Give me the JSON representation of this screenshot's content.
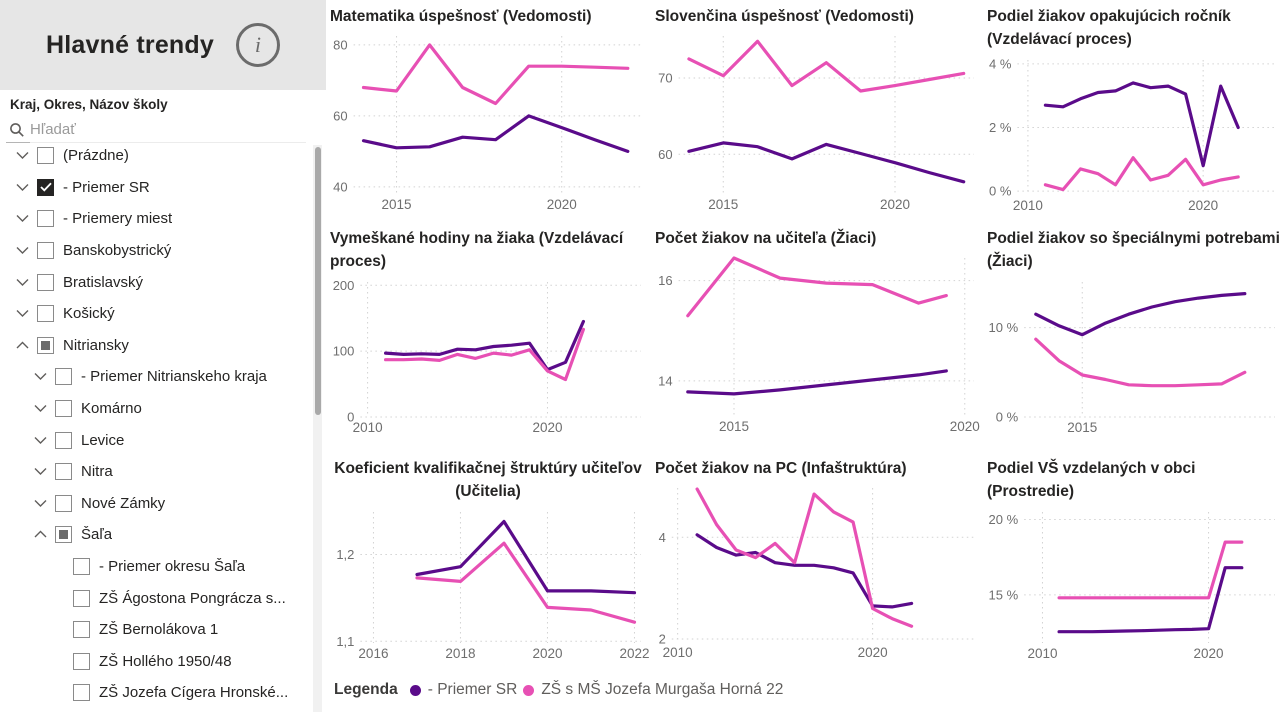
{
  "sidebar": {
    "title": "Hlavné trendy",
    "info_icon": "i",
    "filter_label": "Kraj, Okres, Názov školy",
    "search_placeholder": "Hľadať",
    "tree": [
      {
        "label": "(Prázdne)",
        "level": 0,
        "chevron": "down",
        "state": "unchecked"
      },
      {
        "label": "- Priemer SR",
        "level": 0,
        "chevron": "down",
        "state": "checked"
      },
      {
        "label": "- Priemery miest",
        "level": 0,
        "chevron": "down",
        "state": "unchecked"
      },
      {
        "label": "Banskobystrický",
        "level": 0,
        "chevron": "down",
        "state": "unchecked"
      },
      {
        "label": "Bratislavský",
        "level": 0,
        "chevron": "down",
        "state": "unchecked"
      },
      {
        "label": "Košický",
        "level": 0,
        "chevron": "down",
        "state": "unchecked"
      },
      {
        "label": "Nitriansky",
        "level": 0,
        "chevron": "up",
        "state": "partial"
      },
      {
        "label": "- Priemer Nitrianskeho kraja",
        "level": 1,
        "chevron": "down",
        "state": "unchecked"
      },
      {
        "label": "Komárno",
        "level": 1,
        "chevron": "down",
        "state": "unchecked"
      },
      {
        "label": "Levice",
        "level": 1,
        "chevron": "down",
        "state": "unchecked"
      },
      {
        "label": "Nitra",
        "level": 1,
        "chevron": "down",
        "state": "unchecked"
      },
      {
        "label": "Nové Zámky",
        "level": 1,
        "chevron": "down",
        "state": "unchecked"
      },
      {
        "label": "Šaľa",
        "level": 1,
        "chevron": "up",
        "state": "partial"
      },
      {
        "label": "- Priemer okresu Šaľa",
        "level": 2,
        "chevron": "none",
        "state": "unchecked"
      },
      {
        "label": "ZŠ Ágostona Pongrácza s...",
        "level": 2,
        "chevron": "none",
        "state": "unchecked"
      },
      {
        "label": "ZŠ Bernolákova 1",
        "level": 2,
        "chevron": "none",
        "state": "unchecked"
      },
      {
        "label": "ZŠ Hollého 1950/48",
        "level": 2,
        "chevron": "none",
        "state": "unchecked"
      },
      {
        "label": "ZŠ Jozefa Cígera Hronské...",
        "level": 2,
        "chevron": "none",
        "state": "unchecked"
      }
    ]
  },
  "legend": {
    "label": "Legenda",
    "series": [
      {
        "name": "- Priemer SR",
        "color": "#5A0B8A"
      },
      {
        "name": "ZŠ s MŠ Jozefa Murgaša Horná 22",
        "color": "#E750B4"
      }
    ]
  },
  "colors": {
    "purple": "#5A0B8A",
    "pink": "#E750B4",
    "grid": "#d2d2d2",
    "axis_text": "#6e6e6e",
    "title_text": "#252423",
    "header_bg": "#e6e6e6"
  },
  "chart_data": [
    {
      "type": "line",
      "title": "Matematika úspešnosť (Vedomosti)",
      "xlim": [
        2013.7,
        2022.4
      ],
      "ylim": [
        38,
        82.5
      ],
      "yticks": {
        "values": [
          40,
          60,
          80
        ],
        "labels": [
          "40",
          "60",
          "80"
        ]
      },
      "xticks": {
        "values": [
          2015,
          2020
        ],
        "labels": [
          "2015",
          "2020"
        ]
      },
      "x": [
        2014,
        2015,
        2016,
        2017,
        2018,
        2019,
        2020,
        2021,
        2022
      ],
      "series": [
        {
          "name": "- Priemer SR",
          "values": [
            53,
            51,
            51.3,
            54,
            53.3,
            60,
            56.7,
            53.3,
            50
          ]
        },
        {
          "name": "ZŠ s MŠ Jozefa Murgaša Horná 22",
          "values": [
            68,
            67,
            80,
            68,
            63.5,
            74,
            74,
            73.7,
            73.4
          ]
        }
      ]
    },
    {
      "type": "line",
      "title": "Slovenčina úspešnosť (Vedomosti)",
      "xlim": [
        2013.7,
        2022.3
      ],
      "ylim": [
        54.8,
        75.5
      ],
      "yticks": {
        "values": [
          60,
          70
        ],
        "labels": [
          "60",
          "70"
        ]
      },
      "xticks": {
        "values": [
          2015,
          2020
        ],
        "labels": [
          "2015",
          "2020"
        ]
      },
      "x": [
        2014,
        2015,
        2016,
        2017,
        2018,
        2019,
        2020,
        2021,
        2022
      ],
      "series": [
        {
          "name": "- Priemer SR",
          "values": [
            60.4,
            61.5,
            61,
            59.4,
            61.3,
            60.1,
            58.9,
            57.6,
            56.4
          ]
        },
        {
          "name": "ZŠ s MŠ Jozefa Murgaša Horná 22",
          "values": [
            72.5,
            70.3,
            74.8,
            69,
            72,
            68.3,
            69,
            69.8,
            70.6
          ]
        }
      ]
    },
    {
      "type": "line",
      "title": "Podiel žiakov opakujúcich ročník (Vzdelávací proces)",
      "xlim": [
        2009.4,
        2024.1
      ],
      "ylim": [
        -0.12,
        4.12
      ],
      "yticks": {
        "values": [
          0,
          2,
          4
        ],
        "labels": [
          "0 %",
          "2 %",
          "4 %"
        ]
      },
      "xticks": {
        "values": [
          2010,
          2020
        ],
        "labels": [
          "2010",
          "2020"
        ]
      },
      "x": [
        2011,
        2012,
        2013,
        2014,
        2015,
        2016,
        2017,
        2018,
        2019,
        2020,
        2021,
        2022
      ],
      "series": [
        {
          "name": "- Priemer SR",
          "values": [
            2.7,
            2.65,
            2.9,
            3.1,
            3.15,
            3.4,
            3.25,
            3.3,
            3.05,
            0.8,
            3.3,
            2.0
          ]
        },
        {
          "name": "ZŠ s MŠ Jozefa Murgaša Horná 22",
          "values": [
            0.2,
            0.05,
            0.7,
            0.55,
            0.2,
            1.05,
            0.35,
            0.5,
            1.0,
            0.2,
            0.35,
            0.45
          ]
        }
      ]
    },
    {
      "type": "line",
      "title": "Vymeškané hodiny na žiaka (Vzdelávací proces)",
      "xlim": [
        2009.6,
        2025.2
      ],
      "ylim": [
        0,
        205
      ],
      "yticks": {
        "values": [
          0,
          100,
          200
        ],
        "labels": [
          "0",
          "100",
          "200"
        ]
      },
      "xticks": {
        "values": [
          2010,
          2020
        ],
        "labels": [
          "2010",
          "2020"
        ]
      },
      "x": [
        2011,
        2012,
        2013,
        2014,
        2015,
        2016,
        2017,
        2018,
        2019,
        2020,
        2021,
        2022
      ],
      "series": [
        {
          "name": "- Priemer SR",
          "values": [
            97,
            95,
            96,
            95,
            103,
            102,
            107,
            109,
            112,
            72,
            83,
            145
          ]
        },
        {
          "name": "ZŠ s MŠ Jozefa Murgaša Horná 22",
          "values": [
            87,
            87,
            88,
            86,
            95,
            89,
            97,
            94,
            102,
            70,
            57,
            133
          ]
        }
      ]
    },
    {
      "type": "line",
      "title": "Počet žiakov na učiteľa (Žiaci)",
      "xlim": [
        2013.8,
        2020.2
      ],
      "ylim": [
        13.3,
        16.45
      ],
      "yticks": {
        "values": [
          14,
          16
        ],
        "labels": [
          "14",
          "16"
        ]
      },
      "xticks": {
        "values": [
          2015,
          2020
        ],
        "labels": [
          "2015",
          "2020"
        ]
      },
      "x": [
        2014,
        2015,
        2016,
        2017,
        2018,
        2019,
        2019.6
      ],
      "series": [
        {
          "name": "- Priemer SR",
          "values": [
            13.78,
            13.74,
            13.82,
            13.92,
            14.02,
            14.12,
            14.2
          ]
        },
        {
          "name": "ZŠ s MŠ Jozefa Murgaša Horná 22",
          "values": [
            15.3,
            16.45,
            16.05,
            15.95,
            15.92,
            15.55,
            15.7
          ]
        }
      ]
    },
    {
      "type": "line",
      "title": "Podiel žiakov so špeciálnymi potrebami (Žiaci)",
      "xlim": [
        2012.5,
        2023.3
      ],
      "ylim": [
        0,
        15.1
      ],
      "yticks": {
        "values": [
          0,
          10
        ],
        "labels": [
          "0 %",
          "10 %"
        ]
      },
      "xticks": {
        "values": [
          2015
        ],
        "labels": [
          "2015"
        ]
      },
      "x": [
        2013,
        2014,
        2015,
        2016,
        2017,
        2018,
        2019,
        2020,
        2021,
        2022
      ],
      "series": [
        {
          "name": "- Priemer SR",
          "values": [
            11.5,
            10.2,
            9.2,
            10.5,
            11.5,
            12.3,
            12.9,
            13.3,
            13.6,
            13.8
          ]
        },
        {
          "name": "ZŠ s MŠ Jozefa Murgaša Horná 22",
          "values": [
            8.7,
            6.3,
            4.7,
            4.2,
            3.6,
            3.5,
            3.5,
            3.6,
            3.7,
            5.0
          ]
        }
      ]
    },
    {
      "type": "line",
      "title": "Koeficient kvalifikačnej štruktúry učiteľov (Učitelia)",
      "xlim": [
        2015.7,
        2022.15
      ],
      "ylim": [
        1.098,
        1.249
      ],
      "yticks": {
        "values": [
          1.1,
          1.2
        ],
        "labels": [
          "1,1",
          "1,2"
        ]
      },
      "xticks": {
        "values": [
          2016,
          2018,
          2020,
          2022
        ],
        "labels": [
          "2016",
          "2018",
          "2020",
          "2022"
        ]
      },
      "x": [
        2017,
        2018,
        2019,
        2020,
        2021,
        2022
      ],
      "series": [
        {
          "name": "- Priemer SR",
          "values": [
            1.177,
            1.186,
            1.238,
            1.158,
            1.158,
            1.156
          ]
        },
        {
          "name": "ZŠ s MŠ Jozefa Murgaša Horná 22",
          "values": [
            1.173,
            1.169,
            1.213,
            1.139,
            1.136,
            1.122
          ]
        }
      ]
    },
    {
      "type": "line",
      "title": "Počet žiakov na PC (Infaštruktúra)",
      "xlim": [
        2009.7,
        2025.2
      ],
      "ylim": [
        1.94,
        4.97
      ],
      "yticks": {
        "values": [
          2,
          4
        ],
        "labels": [
          "2",
          "4"
        ]
      },
      "xticks": {
        "values": [
          2010,
          2020
        ],
        "labels": [
          "2010",
          "2020"
        ]
      },
      "x": [
        2011,
        2012,
        2013,
        2014,
        2015,
        2016,
        2017,
        2018,
        2019,
        2020,
        2021,
        2022
      ],
      "series": [
        {
          "name": "- Priemer SR",
          "values": [
            4.05,
            3.8,
            3.65,
            3.7,
            3.5,
            3.45,
            3.45,
            3.4,
            3.3,
            2.65,
            2.63,
            2.7
          ]
        },
        {
          "name": "ZŠ s MŠ Jozefa Murgaša Horná 22",
          "values": [
            4.95,
            4.25,
            3.75,
            3.6,
            3.88,
            3.5,
            4.85,
            4.5,
            4.3,
            2.6,
            2.4,
            2.25
          ]
        }
      ]
    },
    {
      "type": "line",
      "title": "Podiel VŠ vzdelaných v obci (Prostredie)",
      "xlim": [
        2008.9,
        2024.0
      ],
      "ylim": [
        11.8,
        20.5
      ],
      "yticks": {
        "values": [
          15,
          20
        ],
        "labels": [
          "15 %",
          "20 %"
        ]
      },
      "xticks": {
        "values": [
          2010,
          2020
        ],
        "labels": [
          "2010",
          "2020"
        ]
      },
      "x": [
        2011,
        2012,
        2013,
        2014,
        2015,
        2016,
        2017,
        2018,
        2019,
        2020,
        2021,
        2022
      ],
      "series": [
        {
          "name": "- Priemer SR",
          "values": [
            12.55,
            12.55,
            12.55,
            12.57,
            12.6,
            12.62,
            12.65,
            12.68,
            12.7,
            12.75,
            16.8,
            16.8
          ]
        },
        {
          "name": "ZŠ s MŠ Jozefa Murgaša Horná 22",
          "values": [
            14.8,
            14.8,
            14.8,
            14.8,
            14.8,
            14.8,
            14.8,
            14.8,
            14.8,
            14.8,
            18.5,
            18.5
          ]
        }
      ]
    }
  ]
}
